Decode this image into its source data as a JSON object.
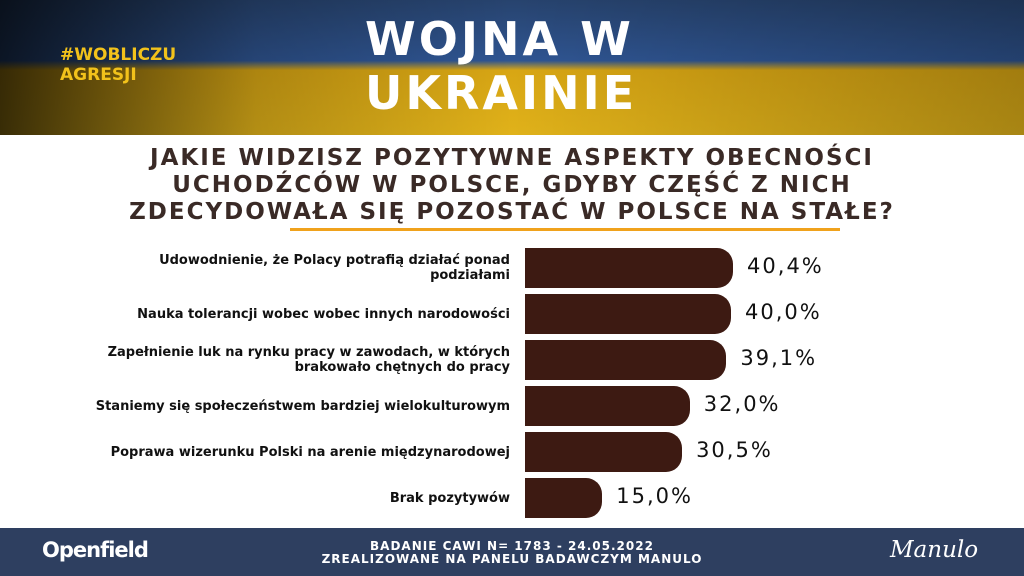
{
  "header": {
    "hashtag": "#WOBLICZU AGRESJI",
    "title": "WOJNA W UKRAINIE"
  },
  "chart_data": {
    "type": "bar",
    "orientation": "horizontal",
    "title": "JAKIE WIDZISZ POZYTYWNE ASPEKTY OBECNOŚCI UCHODŹCÓW W POLSCE, GDYBY CZĘŚĆ Z NICH ZDECYDOWAŁA SIĘ POZOSTAĆ W POLSCE NA STAŁE?",
    "categories": [
      "Udowodnienie, że Polacy potrafią działać ponad podziałami",
      "Nauka tolerancji wobec wobec innych narodowości",
      "Zapełnienie luk na rynku pracy w zawodach, w których brakowało chętnych do pracy",
      "Staniemy się społeczeństwem bardziej wielokulturowym",
      "Poprawa wizerunku Polski na arenie międzynarodowej",
      "Brak pozytywów"
    ],
    "values": [
      40.4,
      40.0,
      39.1,
      32.0,
      30.5,
      15.0
    ],
    "value_labels": [
      "40,4%",
      "40,0%",
      "39,1%",
      "32,0%",
      "30,5%",
      "15,0%"
    ],
    "color": "#3d1a12"
  },
  "footer": {
    "logo_left": "Openfield",
    "line1": "BADANIE CAWI N= 1783 - 24.05.2022",
    "line2": "ZREALIZOWANE NA PANELU BADAWCZYM MANULO",
    "logo_right": "Manulo"
  }
}
